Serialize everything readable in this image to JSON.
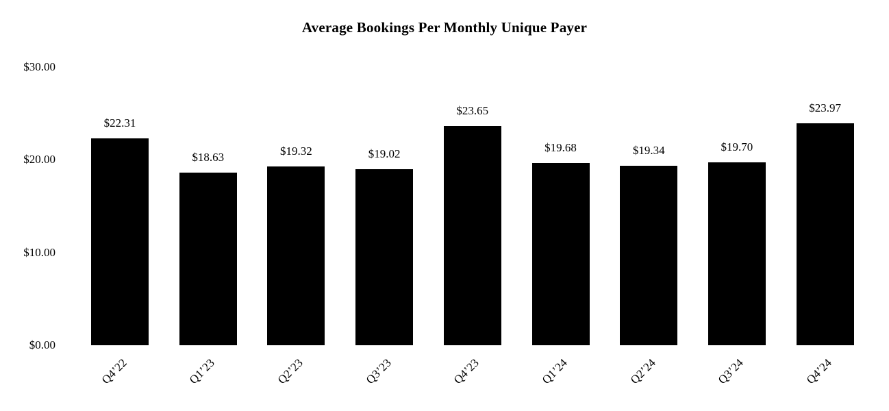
{
  "chart_data": {
    "type": "bar",
    "title": "Average Bookings Per Monthly Unique Payer",
    "categories": [
      "Q4’22",
      "Q1’23",
      "Q2’23",
      "Q3’23",
      "Q4’23",
      "Q1’24",
      "Q2’24",
      "Q3’24",
      "Q4’24"
    ],
    "values": [
      22.31,
      18.63,
      19.32,
      19.02,
      23.65,
      19.68,
      19.34,
      19.7,
      23.97
    ],
    "bar_labels": [
      "$22.31",
      "$18.63",
      "$19.32",
      "$19.02",
      "$23.65",
      "$19.68",
      "$19.34",
      "$19.70",
      "$23.97"
    ],
    "y_ticks": [
      {
        "label": "$0.00",
        "value": 0
      },
      {
        "label": "$10.00",
        "value": 10
      },
      {
        "label": "$20.00",
        "value": 20
      },
      {
        "label": "$30.00",
        "value": 30
      }
    ],
    "ylim": [
      0,
      30
    ],
    "grid": false,
    "legend": "none",
    "bar_color": "#000000",
    "background_color": "#ffffff",
    "text_color": "#000000"
  }
}
